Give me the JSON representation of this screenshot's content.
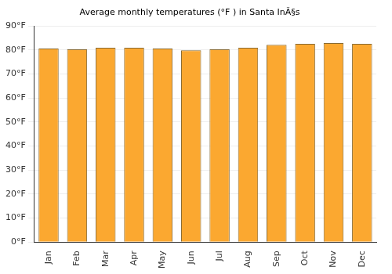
{
  "chart_data": {
    "type": "bar",
    "title": "Average monthly temperatures (°F ) in Santa InÃ§s",
    "categories": [
      "Jan",
      "Feb",
      "Mar",
      "Apr",
      "May",
      "Jun",
      "Jul",
      "Aug",
      "Sep",
      "Oct",
      "Nov",
      "Dec"
    ],
    "values": [
      80.6,
      80.3,
      80.9,
      80.9,
      80.6,
      79.9,
      80.3,
      80.9,
      82.2,
      82.6,
      82.9,
      82.6
    ],
    "color": "#fba830",
    "ylim": [
      0,
      90
    ],
    "yticks": [
      {
        "value": 0,
        "label": "0°F"
      },
      {
        "value": 10,
        "label": "10°F"
      },
      {
        "value": 20,
        "label": "20°F"
      },
      {
        "value": 30,
        "label": "30°F"
      },
      {
        "value": 40,
        "label": "40°F"
      },
      {
        "value": 50,
        "label": "50°F"
      },
      {
        "value": 60,
        "label": "60°F"
      },
      {
        "value": 70,
        "label": "70°F"
      },
      {
        "value": 80,
        "label": "80°F"
      },
      {
        "value": 90,
        "label": "90°F"
      }
    ],
    "grid": true
  }
}
